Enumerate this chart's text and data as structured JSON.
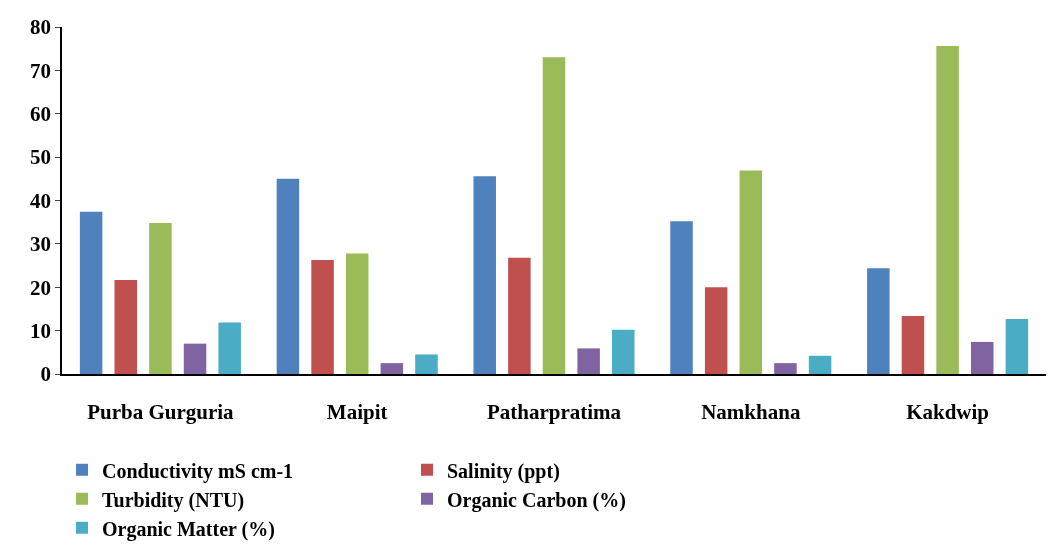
{
  "chart_data": {
    "type": "bar",
    "categories": [
      "Purba Gurguria",
      "Maipit",
      "Patharpratima",
      "Namkhana",
      "Kakdwip"
    ],
    "series": [
      {
        "name": "Conductivity mS cm-1",
        "color": "#4f81bd",
        "values": [
          37.4,
          45.0,
          45.6,
          35.2,
          24.4
        ]
      },
      {
        "name": "Salinity (ppt)",
        "color": "#c0504d",
        "values": [
          21.7,
          26.3,
          26.8,
          20.0,
          13.4
        ]
      },
      {
        "name": "Turbidity (NTU)",
        "color": "#9bbb59",
        "values": [
          34.8,
          27.8,
          73.0,
          46.9,
          75.6
        ]
      },
      {
        "name": "Organic Carbon (%)",
        "color": "#8064a2",
        "values": [
          7.0,
          2.5,
          5.9,
          2.5,
          7.4
        ]
      },
      {
        "name": "Organic Matter (%)",
        "color": "#4bacc6",
        "values": [
          11.9,
          4.5,
          10.2,
          4.2,
          12.7
        ]
      }
    ],
    "ylim": [
      0,
      80
    ],
    "yticks": [
      0,
      10,
      20,
      30,
      40,
      50,
      60,
      70,
      80
    ],
    "legend": "bottom"
  }
}
